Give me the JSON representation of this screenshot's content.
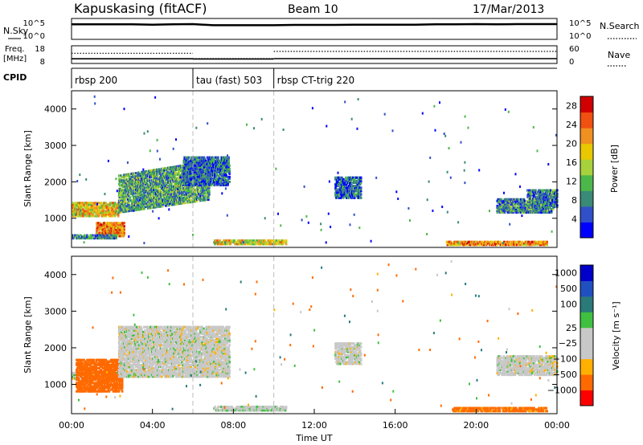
{
  "header": {
    "station": "Kapuskasing (fitACF)",
    "beam": "Beam 10",
    "date": "17/Mar/2013"
  },
  "chart_data": [
    {
      "type": "line",
      "panel": "noise",
      "left_label": "N.Sky",
      "right_label": "N.Search",
      "yticks_left": [
        "10^5",
        "10^0"
      ],
      "yticks_right": [
        "10^5",
        "10^0"
      ],
      "x_hours": [
        0,
        1,
        2,
        3,
        4,
        5,
        6,
        7,
        8,
        9,
        10,
        11,
        12,
        13,
        14,
        15,
        16,
        17,
        18,
        19,
        20,
        21,
        22,
        23,
        24
      ],
      "n_sky_log10": [
        4.9,
        4.9,
        4.9,
        4.9,
        4.8,
        4.9,
        5.0,
        4.6,
        4.6,
        4.6,
        4.6,
        4.7,
        4.7,
        4.7,
        4.8,
        4.8,
        4.8,
        4.8,
        4.9,
        4.9,
        5.0,
        4.9,
        5.0,
        5.0,
        5.0
      ]
    },
    {
      "type": "line",
      "panel": "frequency",
      "left_label": "Freq.",
      "left_unit": "[MHz]",
      "right_label": "Nave",
      "yticks_left": [
        "18",
        "8"
      ],
      "yticks_right": [
        "60",
        "0"
      ],
      "freq_segments": [
        {
          "from": 0,
          "to": 6,
          "freq_mhz": 10.4,
          "nave": 35
        },
        {
          "from": 6,
          "to": 10,
          "freq_mhz": 10.3,
          "nave": 15
        },
        {
          "from": 10,
          "to": 24,
          "freq_mhz": 10.5,
          "nave": 42
        }
      ]
    },
    {
      "type": "table",
      "panel": "cpid",
      "label": "CPID",
      "segments": [
        {
          "from": 0,
          "to": 6,
          "name": "rbsp 200"
        },
        {
          "from": 6,
          "to": 10,
          "name": "tau (fast) 503"
        },
        {
          "from": 10,
          "to": 24,
          "name": "rbsp CT-trig 220"
        }
      ]
    },
    {
      "type": "heatmap",
      "panel": "power",
      "ylabel": "Slant Range [km]",
      "yticks": [
        1000,
        2000,
        3000,
        4000
      ],
      "ylim": [
        200,
        4500
      ],
      "xlim": [
        0,
        24
      ],
      "colorbar_label": "Power [dB]",
      "colorbar_ticks": [
        4,
        8,
        12,
        16,
        20,
        24,
        28
      ],
      "colorbar_range": [
        0,
        30
      ],
      "echo_regions": [
        {
          "t0": 0,
          "t1": 2.3,
          "r0": 1050,
          "r1": 1450,
          "db": 18
        },
        {
          "t0": 1.2,
          "t1": 2.6,
          "r0": 500,
          "r1": 900,
          "db": 22
        },
        {
          "t0": 0,
          "t1": 2.2,
          "r0": 440,
          "r1": 560,
          "db": 8
        },
        {
          "t0": 2.3,
          "t1": 6.8,
          "r0": 1150,
          "r1": 2200,
          "db": 10,
          "slope_to": 2600
        },
        {
          "t0": 5.5,
          "t1": 7.8,
          "r0": 1900,
          "r1": 2700,
          "db": 6
        },
        {
          "t0": 7.0,
          "t1": 10.6,
          "r0": 280,
          "r1": 420,
          "db": 18
        },
        {
          "t0": 13.0,
          "t1": 14.3,
          "r0": 1550,
          "r1": 2150,
          "db": 6
        },
        {
          "t0": 18.5,
          "t1": 23.5,
          "r0": 260,
          "r1": 380,
          "db": 22
        },
        {
          "t0": 21.0,
          "t1": 23.8,
          "r0": 1150,
          "r1": 1550,
          "db": 8
        },
        {
          "t0": 22.5,
          "t1": 24,
          "r0": 1300,
          "r1": 1800,
          "db": 8
        }
      ]
    },
    {
      "type": "heatmap",
      "panel": "velocity",
      "ylabel": "Slant Range [km]",
      "yticks": [
        1000,
        2000,
        3000,
        4000
      ],
      "ylim": [
        200,
        4500
      ],
      "xlim": [
        0,
        24
      ],
      "xticks": [
        "00:00",
        "04:00",
        "08:00",
        "12:00",
        "16:00",
        "20:00",
        "00:00"
      ],
      "xlabel": "Time UT",
      "colorbar_label": "Velocity [m s⁻¹]",
      "colorbar_ticks": [
        "1000",
        "500",
        "100",
        "25",
        "−25",
        "−100",
        "−500",
        "−1000"
      ],
      "echo_regions": [
        {
          "t0": 0,
          "t1": 2.3,
          "r0": 1150,
          "r1": 1350,
          "v": 0
        },
        {
          "t0": 0.2,
          "t1": 2.5,
          "r0": 800,
          "r1": 1700,
          "v": -150
        },
        {
          "t0": 2.3,
          "t1": 7.8,
          "r0": 1200,
          "r1": 2600,
          "v": 0
        },
        {
          "t0": 7.0,
          "t1": 10.6,
          "r0": 280,
          "r1": 420,
          "v": 10
        },
        {
          "t0": 13.0,
          "t1": 14.3,
          "r0": 1550,
          "r1": 2150,
          "v": 0
        },
        {
          "t0": 18.8,
          "t1": 23.5,
          "r0": 260,
          "r1": 380,
          "v": -120
        },
        {
          "t0": 21.0,
          "t1": 24,
          "r0": 1250,
          "r1": 1800,
          "v": 0
        }
      ]
    }
  ],
  "colors": {
    "power_scale": [
      "#0000ff",
      "#3050c8",
      "#3a8a78",
      "#4cb84c",
      "#a8d23c",
      "#e8c800",
      "#f09020",
      "#f05010",
      "#d00000"
    ],
    "velocity_scale": [
      "#ff0000",
      "#ff6a00",
      "#ffb000",
      "#c8c8c8",
      "#c8c8c8",
      "#40c040",
      "#2a7a7a",
      "#2050c0",
      "#0000c8"
    ]
  }
}
